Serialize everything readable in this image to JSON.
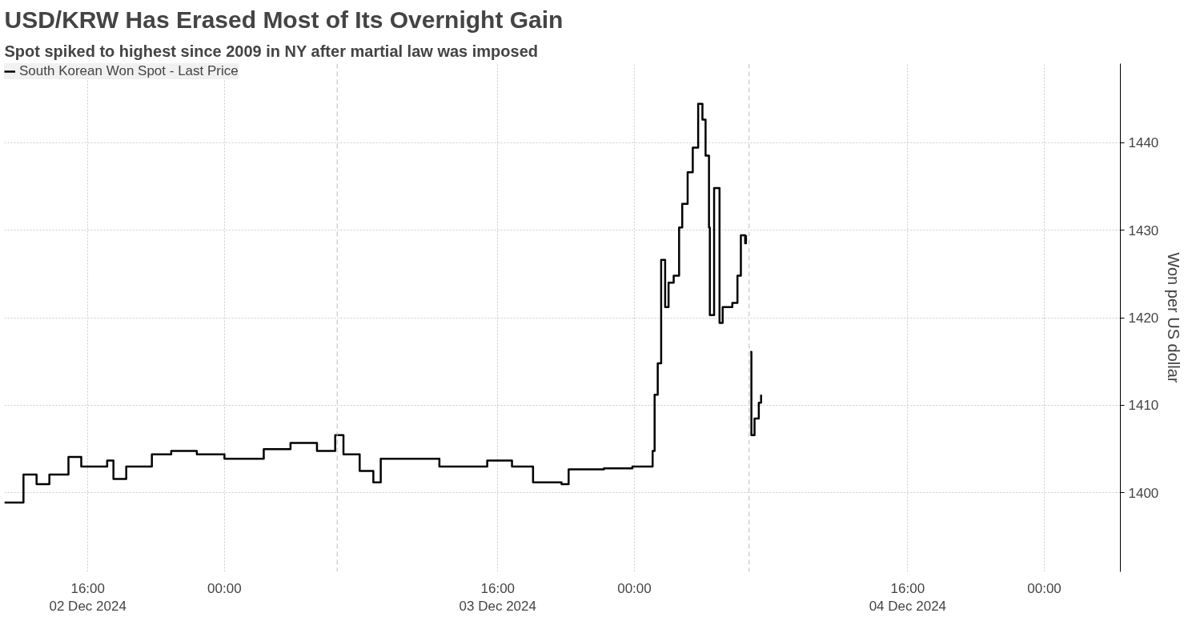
{
  "chart_data": {
    "type": "step",
    "title": "USD/KRW Has Erased Most of Its Overnight Gain",
    "subtitle": "Spot spiked to highest since 2009 in NY after martial law was imposed",
    "ylabel": "Won per US dollar",
    "x": [
      "2024-12-02T11:07",
      "2024-12-02T12:14",
      "2024-12-02T13:00",
      "2024-12-02T13:45",
      "2024-12-02T14:52",
      "2024-12-02T15:37",
      "2024-12-02T17:08",
      "2024-12-02T17:30",
      "2024-12-02T18:15",
      "2024-12-02T19:45",
      "2024-12-02T20:53",
      "2024-12-02T22:23",
      "2024-12-03T00:00",
      "2024-12-03T02:18",
      "2024-12-03T03:52",
      "2024-12-03T05:25",
      "2024-12-03T06:29",
      "2024-12-03T06:58",
      "2024-12-03T07:55",
      "2024-12-03T08:43",
      "2024-12-03T09:09",
      "2024-12-03T12:16",
      "2024-12-03T12:35",
      "2024-12-03T15:23",
      "2024-12-03T16:50",
      "2024-12-03T18:04",
      "2024-12-03T19:44",
      "2024-12-03T20:09",
      "2024-12-03T22:13",
      "2024-12-03T23:53",
      "2024-12-04T00:45",
      "2024-12-04T01:04",
      "2024-12-04T01:11",
      "2024-12-04T01:22",
      "2024-12-04T01:34",
      "2024-12-04T01:48",
      "2024-12-04T02:00",
      "2024-12-04T02:18",
      "2024-12-04T02:37",
      "2024-12-04T02:48",
      "2024-12-04T03:07",
      "2024-12-04T03:25",
      "2024-12-04T03:44",
      "2024-12-04T03:59",
      "2024-12-04T04:10",
      "2024-12-04T04:22",
      "2024-12-04T04:25",
      "2024-12-04T04:40",
      "2024-12-04T04:59",
      "2024-12-04T05:10",
      "2024-12-04T05:44",
      "2024-12-04T06:02",
      "2024-12-04T06:14",
      "2024-12-04T06:29",
      "2024-12-04T06:32",
      "2024-12-04T06:40",
      "2024-12-04T06:47",
      "2024-12-04T06:51",
      "2024-12-04T07:02",
      "2024-12-04T07:17",
      "2024-12-04T07:25"
    ],
    "series": [
      {
        "name": "South Korean Won Spot - Last Price",
        "color": "#000000",
        "values": [
          1398.9,
          1402.1,
          1401,
          1402.1,
          1404.1,
          1403,
          1403.7,
          1401.6,
          1403,
          1404.4,
          1404.8,
          1404.4,
          1403.9,
          1405,
          1405.7,
          1404.8,
          1406.6,
          1404.4,
          1402.5,
          1401.2,
          1403.9,
          1403.9,
          1403,
          1403.7,
          1403,
          1401.2,
          1401,
          1402.7,
          1402.8,
          1403,
          1403,
          1404.8,
          1411.2,
          1414.8,
          1426.6,
          1421.2,
          1424,
          1424.8,
          1430.3,
          1433,
          1436.6,
          1439.4,
          1444.4,
          1442.6,
          1438.5,
          1430.3,
          1420.3,
          1434.8,
          1419.4,
          1421.2,
          1421.7,
          1424.8,
          1429.4,
          1428.5,
          1429.4,
          null,
          1416.1,
          1406.6,
          1408.5,
          1410.3,
          1411.2
        ]
      }
    ],
    "xlim": [
      "2024-12-02T11:07",
      "2024-12-05T04:27"
    ],
    "xticks": [
      {
        "value": "2024-12-02T16:00",
        "label": "16:00\n02 Dec 2024"
      },
      {
        "value": "2024-12-03T00:00",
        "label": "00:00"
      },
      {
        "value": "2024-12-03T16:00",
        "label": "16:00\n03 Dec 2024"
      },
      {
        "value": "2024-12-04T00:00",
        "label": "00:00"
      },
      {
        "value": "2024-12-04T16:00",
        "label": "16:00\n04 Dec 2024"
      },
      {
        "value": "2024-12-05T00:00",
        "label": "00:00"
      }
    ],
    "ylim": [
      1391,
      1449
    ],
    "yticks": [
      1400,
      1410,
      1420,
      1430,
      1440
    ],
    "ref_lines": [
      {
        "axis": "x",
        "value": "2024-12-03T06:36",
        "color": "#bbbbbb",
        "line_style": "dashed"
      },
      {
        "axis": "x",
        "value": "2024-12-04T06:43",
        "color": "#bbbbbb",
        "line_style": "dashed"
      }
    ],
    "grid": true,
    "legend": "top left"
  }
}
